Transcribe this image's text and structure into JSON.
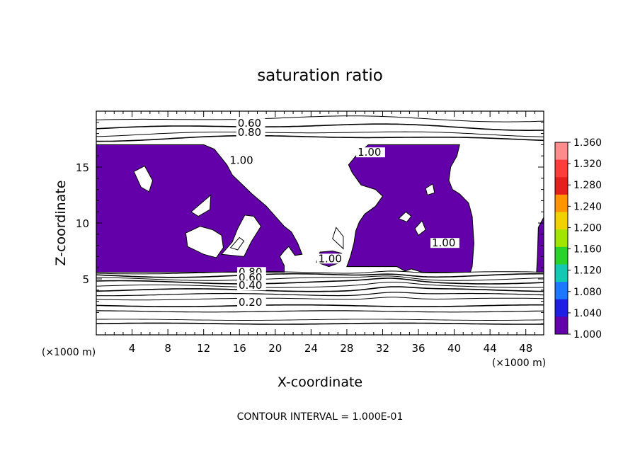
{
  "chart_data": {
    "type": "heatmap",
    "title": "saturation ratio",
    "xlabel": "X-coordinate",
    "ylabel": "Z-coordinate",
    "x_unit_label": "(×1000 m)",
    "z_unit_label": "(×1000 m)",
    "xlim": [
      0,
      50
    ],
    "ylim": [
      0,
      20
    ],
    "x_ticks": [
      4,
      8,
      12,
      16,
      20,
      24,
      28,
      32,
      36,
      40,
      44,
      48
    ],
    "y_ticks": [
      5,
      10,
      15
    ],
    "footer": "CONTOUR INTERVAL = 1.000E-01",
    "colorbar": {
      "range": [
        1.0,
        1.36
      ],
      "labels": [
        "1.360",
        "1.320",
        "1.280",
        "1.240",
        "1.200",
        "1.160",
        "1.120",
        "1.080",
        "1.040",
        "1.000"
      ],
      "colors": [
        "#ff8c8c",
        "#ff3c3c",
        "#e61e1e",
        "#ff9600",
        "#f0d200",
        "#a0e600",
        "#2cd22c",
        "#14c8b4",
        "#1e78ff",
        "#1e1ee6",
        "#6400aa"
      ]
    },
    "contour_labels": [
      {
        "text": "0.60",
        "x": 15.8,
        "z": 18.6
      },
      {
        "text": "0.80",
        "x": 15.8,
        "z": 17.8
      },
      {
        "text": "1.00",
        "x": 14.9,
        "z": 15.3
      },
      {
        "text": "1.00",
        "x": 29.2,
        "z": 16.0
      },
      {
        "text": "1.00",
        "x": 37.5,
        "z": 7.9
      },
      {
        "text": "1.00",
        "x": 24.8,
        "z": 6.5
      },
      {
        "text": "0.80",
        "x": 15.9,
        "z": 5.3
      },
      {
        "text": "0.60",
        "x": 15.9,
        "z": 4.8
      },
      {
        "text": "0.40",
        "x": 15.9,
        "z": 4.1
      },
      {
        "text": "0.20",
        "x": 15.9,
        "z": 2.6
      }
    ],
    "supersaturated_regions": [
      {
        "name": "left-cloud",
        "polygon": [
          [
            0,
            5.6
          ],
          [
            0,
            17
          ],
          [
            12,
            17
          ],
          [
            13.2,
            16.6
          ],
          [
            14.6,
            15.2
          ],
          [
            15.2,
            14.3
          ],
          [
            17.4,
            12.6
          ],
          [
            19,
            11.5
          ],
          [
            21,
            9.7
          ],
          [
            21.8,
            9.2
          ],
          [
            22.5,
            8.2
          ],
          [
            23,
            7.2
          ],
          [
            22.2,
            7.1
          ],
          [
            21.5,
            7.9
          ],
          [
            21,
            7.5
          ],
          [
            20.5,
            7
          ],
          [
            21,
            6.2
          ],
          [
            21,
            5.6
          ]
        ]
      },
      {
        "name": "right-cloud",
        "polygon": [
          [
            28,
            6.1
          ],
          [
            28.4,
            7
          ],
          [
            28.8,
            8.2
          ],
          [
            29,
            9.3
          ],
          [
            29.4,
            10.1
          ],
          [
            30,
            10.8
          ],
          [
            31.2,
            11.5
          ],
          [
            32,
            12.4
          ],
          [
            31.2,
            13
          ],
          [
            29.6,
            13.4
          ],
          [
            28.6,
            14.5
          ],
          [
            28.2,
            15.2
          ],
          [
            29,
            16
          ],
          [
            30.4,
            17
          ],
          [
            40.6,
            17
          ],
          [
            40.3,
            16
          ],
          [
            39.6,
            15
          ],
          [
            39.4,
            13.8
          ],
          [
            39.8,
            13
          ],
          [
            40.6,
            12.6
          ],
          [
            41.6,
            11.8
          ],
          [
            42,
            10.6
          ],
          [
            42.2,
            8.2
          ],
          [
            42,
            6.1
          ],
          [
            41.8,
            5.6
          ],
          [
            36.4,
            5.6
          ],
          [
            35.2,
            5.9
          ],
          [
            34.5,
            5.7
          ],
          [
            33.6,
            6.1
          ]
        ]
      },
      {
        "name": "right-edge",
        "polygon": [
          [
            49.2,
            5.6
          ],
          [
            49.3,
            7
          ],
          [
            49.4,
            9.6
          ],
          [
            50,
            10.5
          ],
          [
            50,
            5.6
          ]
        ]
      },
      {
        "name": "center-blob",
        "polygon": [
          [
            24.6,
            6.5
          ],
          [
            25,
            7.4
          ],
          [
            26.4,
            7.5
          ],
          [
            27.4,
            7.3
          ],
          [
            27.8,
            6.9
          ],
          [
            27,
            6.4
          ],
          [
            26,
            6.1
          ]
        ]
      }
    ],
    "subsaturated_holes": [
      {
        "polygon": [
          [
            4.2,
            14.6
          ],
          [
            5.4,
            15.1
          ],
          [
            6.3,
            13.8
          ],
          [
            5.9,
            12.8
          ],
          [
            5,
            13.2
          ]
        ]
      },
      {
        "polygon": [
          [
            10.6,
            11
          ],
          [
            12.8,
            12.5
          ],
          [
            12.7,
            11.2
          ],
          [
            11.4,
            10.6
          ]
        ]
      },
      {
        "polygon": [
          [
            10,
            9.1
          ],
          [
            11.6,
            9.7
          ],
          [
            13,
            9.4
          ],
          [
            14,
            8.9
          ],
          [
            14.2,
            7.8
          ],
          [
            13.4,
            6.9
          ],
          [
            12,
            7.2
          ],
          [
            10.2,
            7.9
          ]
        ]
      },
      {
        "polygon": [
          [
            14,
            7.2
          ],
          [
            15.2,
            8.3
          ],
          [
            15.8,
            9.5
          ],
          [
            16.6,
            10.7
          ],
          [
            17.6,
            10.6
          ],
          [
            18.4,
            9.7
          ],
          [
            17.3,
            8.3
          ],
          [
            16.5,
            7
          ]
        ]
      },
      {
        "polygon": [
          [
            26.4,
            8.6
          ],
          [
            26.8,
            9.6
          ],
          [
            27.6,
            8.8
          ],
          [
            27.6,
            7.7
          ]
        ]
      },
      {
        "polygon": [
          [
            36.8,
            13.1
          ],
          [
            37.6,
            13.5
          ],
          [
            37.8,
            12.7
          ],
          [
            37,
            12.5
          ]
        ]
      },
      {
        "polygon": [
          [
            33.8,
            10.4
          ],
          [
            34.6,
            11
          ],
          [
            35.2,
            10.6
          ],
          [
            34.7,
            10.1
          ]
        ]
      },
      {
        "polygon": [
          [
            35.6,
            9.5
          ],
          [
            36.4,
            10.2
          ],
          [
            36.8,
            9.4
          ],
          [
            36,
            8.9
          ]
        ]
      },
      {
        "polygon": [
          [
            15,
            7.8
          ],
          [
            16,
            8.7
          ],
          [
            16.5,
            8.4
          ],
          [
            15.8,
            7.6
          ]
        ]
      }
    ]
  }
}
